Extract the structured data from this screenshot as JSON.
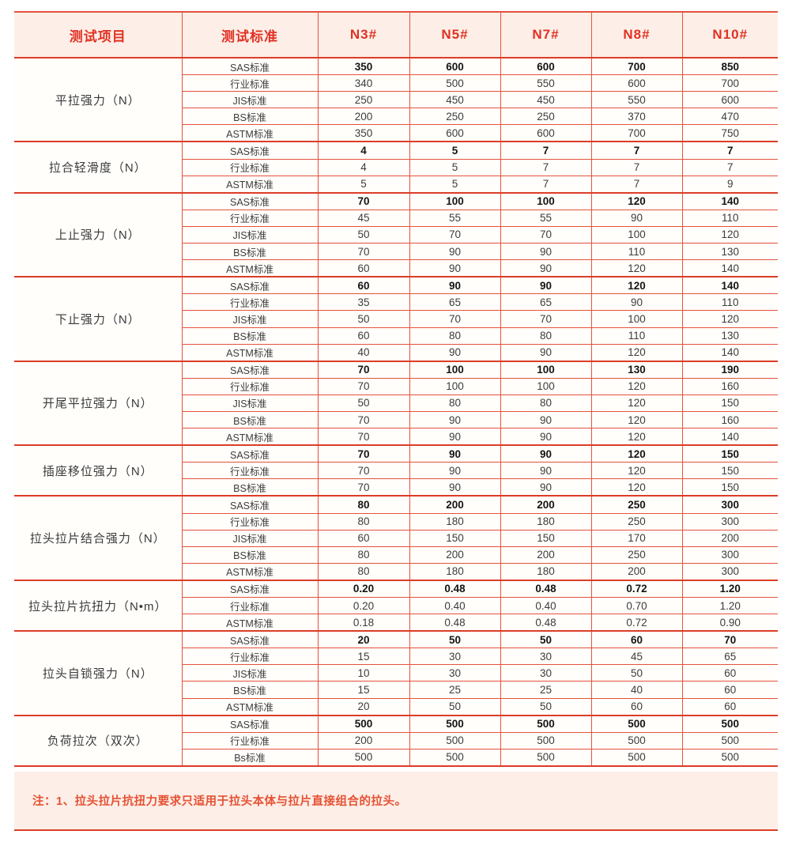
{
  "table": {
    "columns": [
      "测试项目",
      "测试标准",
      "N3#",
      "N5#",
      "N7#",
      "N8#",
      "N10#"
    ],
    "groups": [
      {
        "item": "平拉强力（N）",
        "rows": [
          {
            "standard": "SAS标准",
            "bold": true,
            "values": [
              "350",
              "600",
              "600",
              "700",
              "850"
            ]
          },
          {
            "standard": "行业标准",
            "bold": false,
            "values": [
              "340",
              "500",
              "550",
              "600",
              "700"
            ]
          },
          {
            "standard": "JIS标准",
            "bold": false,
            "values": [
              "250",
              "450",
              "450",
              "550",
              "600"
            ]
          },
          {
            "standard": "BS标准",
            "bold": false,
            "values": [
              "200",
              "250",
              "250",
              "370",
              "470"
            ]
          },
          {
            "standard": "ASTM标准",
            "bold": false,
            "values": [
              "350",
              "600",
              "600",
              "700",
              "750"
            ]
          }
        ]
      },
      {
        "item": "拉合轻滑度（N）",
        "rows": [
          {
            "standard": "SAS标准",
            "bold": true,
            "values": [
              "4",
              "5",
              "7",
              "7",
              "7"
            ]
          },
          {
            "standard": "行业标准",
            "bold": false,
            "values": [
              "4",
              "5",
              "7",
              "7",
              "7"
            ]
          },
          {
            "standard": "ASTM标准",
            "bold": false,
            "values": [
              "5",
              "5",
              "7",
              "7",
              "9"
            ]
          }
        ]
      },
      {
        "item": "上止强力（N）",
        "rows": [
          {
            "standard": "SAS标准",
            "bold": true,
            "values": [
              "70",
              "100",
              "100",
              "120",
              "140"
            ]
          },
          {
            "standard": "行业标准",
            "bold": false,
            "values": [
              "45",
              "55",
              "55",
              "90",
              "110"
            ]
          },
          {
            "standard": "JIS标准",
            "bold": false,
            "values": [
              "50",
              "70",
              "70",
              "100",
              "120"
            ]
          },
          {
            "standard": "BS标准",
            "bold": false,
            "values": [
              "70",
              "90",
              "90",
              "110",
              "130"
            ]
          },
          {
            "standard": "ASTM标准",
            "bold": false,
            "values": [
              "60",
              "90",
              "90",
              "120",
              "140"
            ]
          }
        ]
      },
      {
        "item": "下止强力（N）",
        "rows": [
          {
            "standard": "SAS标准",
            "bold": true,
            "values": [
              "60",
              "90",
              "90",
              "120",
              "140"
            ]
          },
          {
            "standard": "行业标准",
            "bold": false,
            "values": [
              "35",
              "65",
              "65",
              "90",
              "110"
            ]
          },
          {
            "standard": "JIS标准",
            "bold": false,
            "values": [
              "50",
              "70",
              "70",
              "100",
              "120"
            ]
          },
          {
            "standard": "BS标准",
            "bold": false,
            "values": [
              "60",
              "80",
              "80",
              "110",
              "130"
            ]
          },
          {
            "standard": "ASTM标准",
            "bold": false,
            "values": [
              "40",
              "90",
              "90",
              "120",
              "140"
            ]
          }
        ]
      },
      {
        "item": "开尾平拉强力（N）",
        "rows": [
          {
            "standard": "SAS标准",
            "bold": true,
            "values": [
              "70",
              "100",
              "100",
              "130",
              "190"
            ]
          },
          {
            "standard": "行业标准",
            "bold": false,
            "values": [
              "70",
              "100",
              "100",
              "120",
              "160"
            ]
          },
          {
            "standard": "JIS标准",
            "bold": false,
            "values": [
              "50",
              "80",
              "80",
              "120",
              "150"
            ]
          },
          {
            "standard": "BS标准",
            "bold": false,
            "values": [
              "70",
              "90",
              "90",
              "120",
              "160"
            ]
          },
          {
            "standard": "ASTM标准",
            "bold": false,
            "values": [
              "70",
              "90",
              "90",
              "120",
              "140"
            ]
          }
        ]
      },
      {
        "item": "插座移位强力（N）",
        "rows": [
          {
            "standard": "SAS标准",
            "bold": true,
            "values": [
              "70",
              "90",
              "90",
              "120",
              "150"
            ]
          },
          {
            "standard": "行业标准",
            "bold": false,
            "values": [
              "70",
              "90",
              "90",
              "120",
              "150"
            ]
          },
          {
            "standard": "BS标准",
            "bold": false,
            "values": [
              "70",
              "90",
              "90",
              "120",
              "150"
            ]
          }
        ]
      },
      {
        "item": "拉头拉片结合强力（N）",
        "rows": [
          {
            "standard": "SAS标准",
            "bold": true,
            "values": [
              "80",
              "200",
              "200",
              "250",
              "300"
            ]
          },
          {
            "standard": "行业标准",
            "bold": false,
            "values": [
              "80",
              "180",
              "180",
              "250",
              "300"
            ]
          },
          {
            "standard": "JIS标准",
            "bold": false,
            "values": [
              "60",
              "150",
              "150",
              "170",
              "200"
            ]
          },
          {
            "standard": "BS标准",
            "bold": false,
            "values": [
              "80",
              "200",
              "200",
              "250",
              "300"
            ]
          },
          {
            "standard": "ASTM标准",
            "bold": false,
            "values": [
              "80",
              "180",
              "180",
              "200",
              "300"
            ]
          }
        ]
      },
      {
        "item": "拉头拉片抗扭力（N•m）",
        "rows": [
          {
            "standard": "SAS标准",
            "bold": true,
            "values": [
              "0.20",
              "0.48",
              "0.48",
              "0.72",
              "1.20"
            ]
          },
          {
            "standard": "行业标准",
            "bold": false,
            "values": [
              "0.20",
              "0.40",
              "0.40",
              "0.70",
              "1.20"
            ]
          },
          {
            "standard": "ASTM标准",
            "bold": false,
            "values": [
              "0.18",
              "0.48",
              "0.48",
              "0.72",
              "0.90"
            ]
          }
        ]
      },
      {
        "item": "拉头自锁强力（N）",
        "rows": [
          {
            "standard": "SAS标准",
            "bold": true,
            "values": [
              "20",
              "50",
              "50",
              "60",
              "70"
            ]
          },
          {
            "standard": "行业标准",
            "bold": false,
            "values": [
              "15",
              "30",
              "30",
              "45",
              "65"
            ]
          },
          {
            "standard": "JIS标准",
            "bold": false,
            "values": [
              "10",
              "30",
              "30",
              "50",
              "60"
            ]
          },
          {
            "standard": "BS标准",
            "bold": false,
            "values": [
              "15",
              "25",
              "25",
              "40",
              "60"
            ]
          },
          {
            "standard": "ASTM标准",
            "bold": false,
            "values": [
              "20",
              "50",
              "50",
              "60",
              "60"
            ]
          }
        ]
      },
      {
        "item": "负荷拉次（双次）",
        "rows": [
          {
            "standard": "SAS标准",
            "bold": true,
            "values": [
              "500",
              "500",
              "500",
              "500",
              "500"
            ]
          },
          {
            "standard": "行业标准",
            "bold": false,
            "values": [
              "200",
              "500",
              "500",
              "500",
              "500"
            ]
          },
          {
            "standard": "Bs标准",
            "bold": false,
            "values": [
              "500",
              "500",
              "500",
              "500",
              "500"
            ]
          }
        ]
      }
    ]
  },
  "note": "注：1、拉头拉片抗扭力要求只适用于拉头本体与拉片直接组合的拉头。",
  "colors": {
    "accent_red": "#e03123",
    "border_red": "#e4523c",
    "group_border_red": "#dc3d27",
    "header_bg_pink": "#fdeee7",
    "value_text": "#3c3c3c"
  }
}
